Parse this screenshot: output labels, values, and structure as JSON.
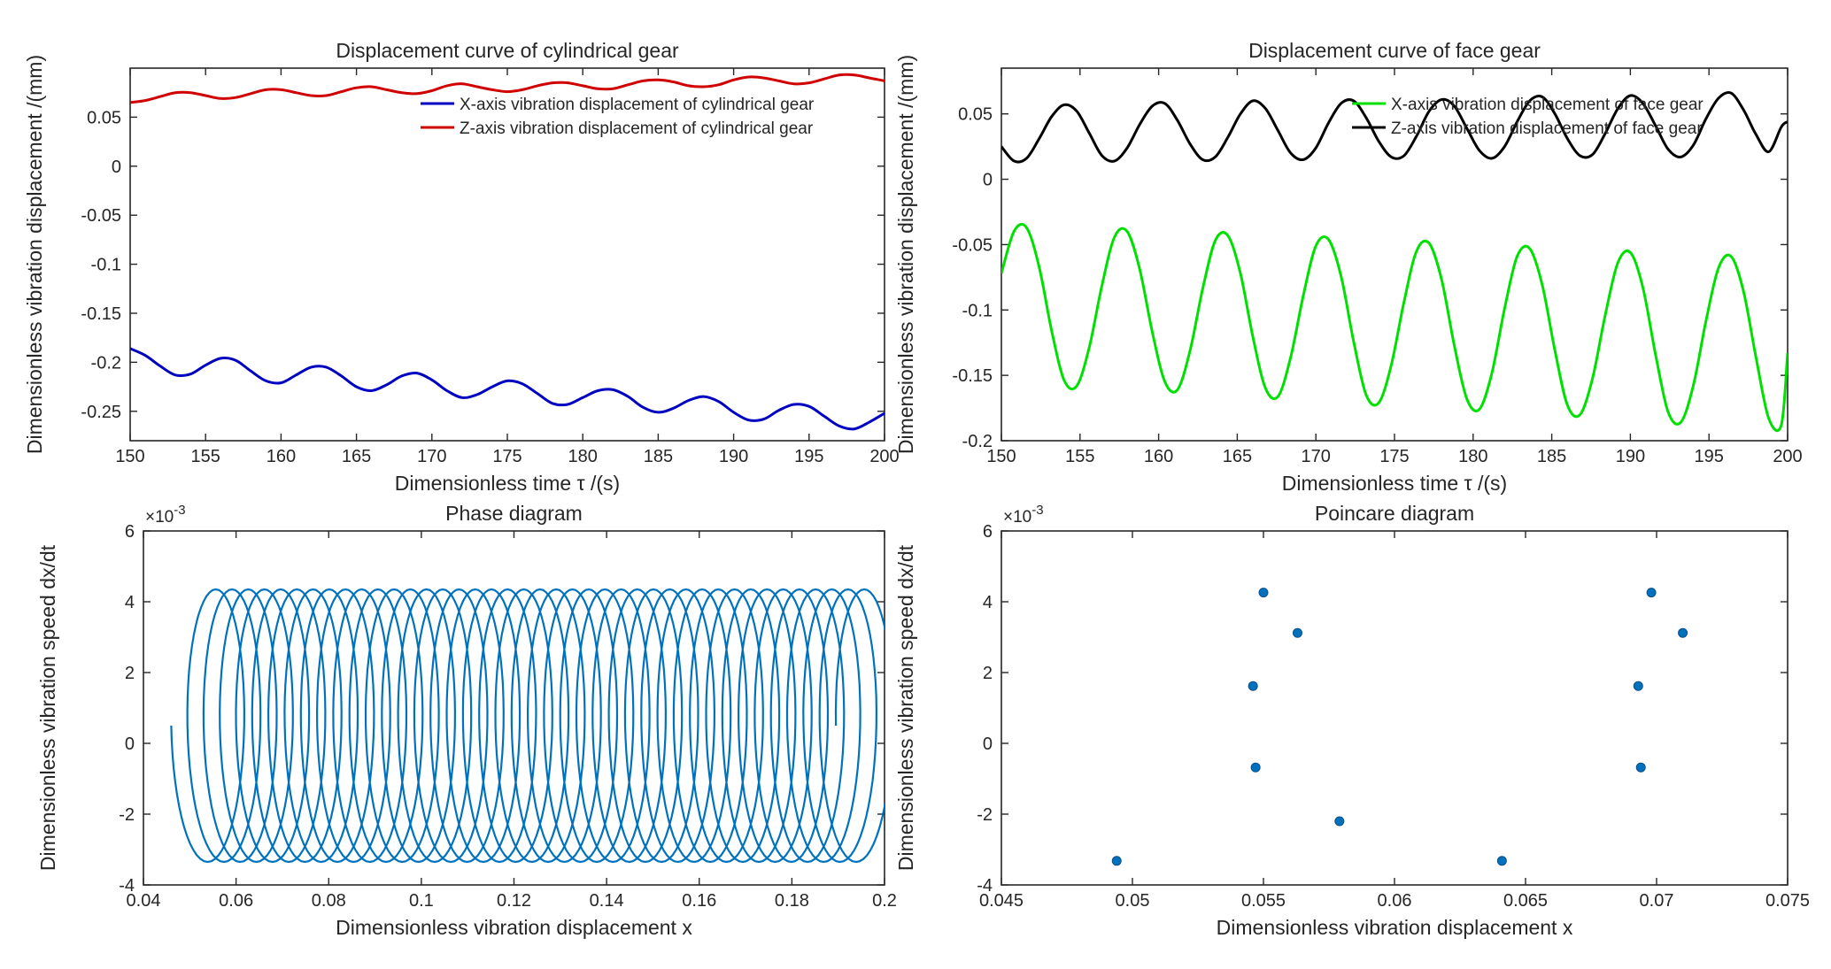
{
  "chart_data": [
    {
      "id": "p1",
      "type": "line",
      "title": "Displacement curve of cylindrical gear",
      "xlabel": "Dimensionless time τ /(s)",
      "ylabel": "Dimensionless vibration displacement /(mm)",
      "xlim": [
        150,
        200
      ],
      "ylim": [
        -0.28,
        0.1
      ],
      "xticks": [
        150,
        155,
        160,
        165,
        170,
        175,
        180,
        185,
        190,
        195,
        200
      ],
      "xtick_labels": [
        "150",
        "155",
        "160",
        "165",
        "170",
        "175",
        "180",
        "185",
        "190",
        "195",
        "200"
      ],
      "yticks": [
        -0.25,
        -0.2,
        -0.15,
        -0.1,
        -0.05,
        0,
        0.05
      ],
      "ytick_labels": [
        "-0.25",
        "-0.2",
        "-0.15",
        "-0.1",
        "-0.05",
        "0",
        "0.05"
      ],
      "grid": false,
      "legend_placement": "top-right",
      "series": [
        {
          "name": "X-axis vibration displacement of cylindrical gear",
          "color": "#0000c0",
          "x": [
            150,
            151,
            152,
            153,
            154,
            155,
            156,
            157,
            158,
            159,
            160,
            161,
            162,
            163,
            164,
            165,
            166,
            167,
            168,
            169,
            170,
            171,
            172,
            173,
            174,
            175,
            176,
            177,
            178,
            179,
            180,
            181,
            182,
            183,
            184,
            185,
            186,
            187,
            188,
            189,
            190,
            191,
            192,
            193,
            194,
            195,
            196,
            197,
            198,
            199,
            200
          ],
          "y": [
            -0.186,
            -0.193,
            -0.204,
            -0.213,
            -0.212,
            -0.203,
            -0.196,
            -0.198,
            -0.209,
            -0.219,
            -0.221,
            -0.213,
            -0.205,
            -0.205,
            -0.214,
            -0.225,
            -0.229,
            -0.223,
            -0.214,
            -0.211,
            -0.218,
            -0.229,
            -0.236,
            -0.233,
            -0.225,
            -0.219,
            -0.222,
            -0.232,
            -0.242,
            -0.243,
            -0.236,
            -0.229,
            -0.228,
            -0.235,
            -0.246,
            -0.251,
            -0.247,
            -0.239,
            -0.235,
            -0.24,
            -0.251,
            -0.259,
            -0.258,
            -0.249,
            -0.243,
            -0.245,
            -0.255,
            -0.265,
            -0.268,
            -0.261,
            -0.252
          ]
        },
        {
          "name": "Z-axis vibration displacement of cylindrical gear",
          "color": "#d00000",
          "x": [
            150,
            151,
            152,
            153,
            154,
            155,
            156,
            157,
            158,
            159,
            160,
            161,
            162,
            163,
            164,
            165,
            166,
            167,
            168,
            169,
            170,
            171,
            172,
            173,
            174,
            175,
            176,
            177,
            178,
            179,
            180,
            181,
            182,
            183,
            184,
            185,
            186,
            187,
            188,
            189,
            190,
            191,
            192,
            193,
            194,
            195,
            196,
            197,
            198,
            199,
            200
          ],
          "y": [
            0.065,
            0.067,
            0.071,
            0.075,
            0.075,
            0.072,
            0.069,
            0.07,
            0.074,
            0.078,
            0.078,
            0.075,
            0.072,
            0.072,
            0.076,
            0.08,
            0.081,
            0.078,
            0.075,
            0.074,
            0.077,
            0.082,
            0.084,
            0.081,
            0.078,
            0.076,
            0.078,
            0.082,
            0.085,
            0.085,
            0.082,
            0.079,
            0.079,
            0.083,
            0.087,
            0.088,
            0.086,
            0.082,
            0.081,
            0.083,
            0.088,
            0.091,
            0.09,
            0.087,
            0.084,
            0.085,
            0.089,
            0.093,
            0.093,
            0.09,
            0.087
          ]
        }
      ]
    },
    {
      "id": "p2",
      "type": "line",
      "title": "Displacement curve of face gear",
      "xlabel": "Dimensionless time τ /(s)",
      "ylabel": "Dimensionless vibration displacement /(mm)",
      "xlim": [
        150,
        200
      ],
      "ylim": [
        -0.2,
        0.085
      ],
      "xticks": [
        150,
        155,
        160,
        165,
        170,
        175,
        180,
        185,
        190,
        195,
        200
      ],
      "xtick_labels": [
        "150",
        "155",
        "160",
        "165",
        "170",
        "175",
        "180",
        "185",
        "190",
        "195",
        "200"
      ],
      "yticks": [
        -0.2,
        -0.15,
        -0.1,
        -0.05,
        0,
        0.05
      ],
      "ytick_labels": [
        "-0.2",
        "-0.15",
        "-0.1",
        "-0.05",
        "0",
        "0.05"
      ],
      "grid": false,
      "legend_placement": "top-right",
      "series": [
        {
          "name": "X-axis vibration displacement of face gear",
          "color": "#00e000",
          "x": [
            150,
            150.8,
            151.6,
            152.4,
            153.2,
            154.0,
            154.8,
            155.6,
            156.4,
            157.2,
            158.0,
            158.8,
            159.6,
            160.4,
            161.2,
            162.0,
            162.8,
            163.6,
            164.4,
            165.2,
            166.0,
            166.8,
            167.6,
            168.4,
            169.2,
            170.0,
            170.8,
            171.6,
            172.4,
            173.2,
            174.0,
            174.8,
            175.6,
            176.4,
            177.2,
            178.0,
            178.8,
            179.6,
            180.4,
            181.2,
            182.0,
            182.8,
            183.6,
            184.4,
            185.2,
            186.0,
            186.8,
            187.6,
            188.4,
            189.2,
            190.0,
            190.8,
            191.6,
            192.4,
            193.2,
            194.0,
            194.8,
            195.6,
            196.4,
            197.2,
            198.0,
            198.8,
            199.6,
            200
          ],
          "y": [
            -0.072,
            -0.04,
            -0.037,
            -0.067,
            -0.116,
            -0.154,
            -0.158,
            -0.128,
            -0.081,
            -0.044,
            -0.04,
            -0.069,
            -0.117,
            -0.155,
            -0.161,
            -0.131,
            -0.084,
            -0.047,
            -0.043,
            -0.072,
            -0.121,
            -0.16,
            -0.166,
            -0.136,
            -0.089,
            -0.051,
            -0.046,
            -0.074,
            -0.124,
            -0.165,
            -0.171,
            -0.142,
            -0.094,
            -0.055,
            -0.049,
            -0.077,
            -0.127,
            -0.168,
            -0.176,
            -0.148,
            -0.099,
            -0.059,
            -0.053,
            -0.081,
            -0.131,
            -0.173,
            -0.18,
            -0.152,
            -0.104,
            -0.064,
            -0.056,
            -0.083,
            -0.134,
            -0.178,
            -0.186,
            -0.158,
            -0.109,
            -0.068,
            -0.059,
            -0.086,
            -0.137,
            -0.183,
            -0.188,
            -0.133
          ]
        },
        {
          "name": "Z-axis vibration displacement of face gear",
          "color": "#000000",
          "x": [
            150,
            150.8,
            151.6,
            152.4,
            153.2,
            154.0,
            154.8,
            155.6,
            156.4,
            157.2,
            158.0,
            158.8,
            159.6,
            160.4,
            161.2,
            162.0,
            162.8,
            163.6,
            164.4,
            165.2,
            166.0,
            166.8,
            167.6,
            168.4,
            169.2,
            170.0,
            170.8,
            171.6,
            172.4,
            173.2,
            174.0,
            174.8,
            175.6,
            176.4,
            177.2,
            178.0,
            178.8,
            179.6,
            180.4,
            181.2,
            182.0,
            182.8,
            183.6,
            184.4,
            185.2,
            186.0,
            186.8,
            187.6,
            188.4,
            189.2,
            190.0,
            190.8,
            191.6,
            192.4,
            193.2,
            194.0,
            194.8,
            195.6,
            196.4,
            197.2,
            198.0,
            198.8,
            199.6,
            200
          ],
          "y": [
            0.025,
            0.014,
            0.016,
            0.031,
            0.048,
            0.057,
            0.052,
            0.035,
            0.018,
            0.014,
            0.024,
            0.042,
            0.056,
            0.058,
            0.045,
            0.027,
            0.015,
            0.017,
            0.032,
            0.05,
            0.06,
            0.054,
            0.037,
            0.02,
            0.015,
            0.024,
            0.043,
            0.058,
            0.06,
            0.047,
            0.029,
            0.017,
            0.018,
            0.033,
            0.052,
            0.061,
            0.056,
            0.039,
            0.022,
            0.016,
            0.025,
            0.044,
            0.06,
            0.063,
            0.05,
            0.031,
            0.018,
            0.019,
            0.035,
            0.054,
            0.064,
            0.058,
            0.041,
            0.023,
            0.017,
            0.026,
            0.046,
            0.062,
            0.066,
            0.053,
            0.034,
            0.021,
            0.04,
            0.044
          ]
        }
      ]
    },
    {
      "id": "p3",
      "type": "line",
      "title": "Phase diagram",
      "xlabel": "Dimensionless vibration displacement x",
      "ylabel": "Dimensionless vibration speed dx/dt",
      "y_exponent_label": "×10",
      "y_exponent_power": "-3",
      "xlim": [
        0.04,
        0.2
      ],
      "ylim": [
        -4,
        6
      ],
      "xticks": [
        0.04,
        0.06,
        0.08,
        0.1,
        0.12,
        0.14,
        0.16,
        0.18,
        0.2
      ],
      "xtick_labels": [
        "0.04",
        "0.06",
        "0.08",
        "0.1",
        "0.12",
        "0.14",
        "0.16",
        "0.18",
        "0.2"
      ],
      "yticks": [
        -4,
        -2,
        0,
        2,
        4,
        6
      ],
      "ytick_labels": [
        "-4",
        "-2",
        "0",
        "2",
        "4",
        "6"
      ],
      "grid": false,
      "series": [
        {
          "color": "#0072bd",
          "loop_centers_x": [
            0.053,
            0.0565,
            0.06,
            0.0635,
            0.067,
            0.0705,
            0.074,
            0.0775,
            0.081,
            0.0845,
            0.088,
            0.0915,
            0.095,
            0.0985,
            0.102,
            0.1055,
            0.109,
            0.1125,
            0.116,
            0.1195,
            0.123,
            0.1265,
            0.13,
            0.1335,
            0.137,
            0.1405,
            0.144,
            0.1475,
            0.151,
            0.1545,
            0.158,
            0.1615,
            0.165,
            0.1685,
            0.172,
            0.1755,
            0.179,
            0.1825,
            0.186,
            0.1895,
            0.193
          ],
          "loop_half_width_x": 0.007,
          "y_max": 4.35,
          "y_min": -3.35,
          "x_left_extent": 0.0455,
          "x_right_extent": 0.199
        }
      ]
    },
    {
      "id": "p4",
      "type": "scatter",
      "title": "Poincare diagram",
      "xlabel": "Dimensionless vibration displacement x",
      "ylabel": "Dimensionless vibration speed dx/dt",
      "y_exponent_label": "×10",
      "y_exponent_power": "-3",
      "xlim": [
        0.045,
        0.075
      ],
      "ylim": [
        -4,
        6
      ],
      "xticks": [
        0.045,
        0.05,
        0.055,
        0.06,
        0.065,
        0.07,
        0.075
      ],
      "xtick_labels": [
        "0.045",
        "0.05",
        "0.055",
        "0.06",
        "0.065",
        "0.07",
        "0.075"
      ],
      "yticks": [
        -4,
        -2,
        0,
        2,
        4,
        6
      ],
      "ytick_labels": [
        "-4",
        "-2",
        "0",
        "2",
        "4",
        "6"
      ],
      "grid": false,
      "series": [
        {
          "color": "#0072bd",
          "x": [
            0.0494,
            0.055,
            0.0563,
            0.0546,
            0.0547,
            0.0579,
            0.0641,
            0.0698,
            0.071,
            0.0693,
            0.0694
          ],
          "y": [
            -3.32,
            4.26,
            3.12,
            1.62,
            -0.68,
            -2.2,
            -3.32,
            4.26,
            3.12,
            1.62,
            -0.68
          ]
        }
      ]
    }
  ]
}
